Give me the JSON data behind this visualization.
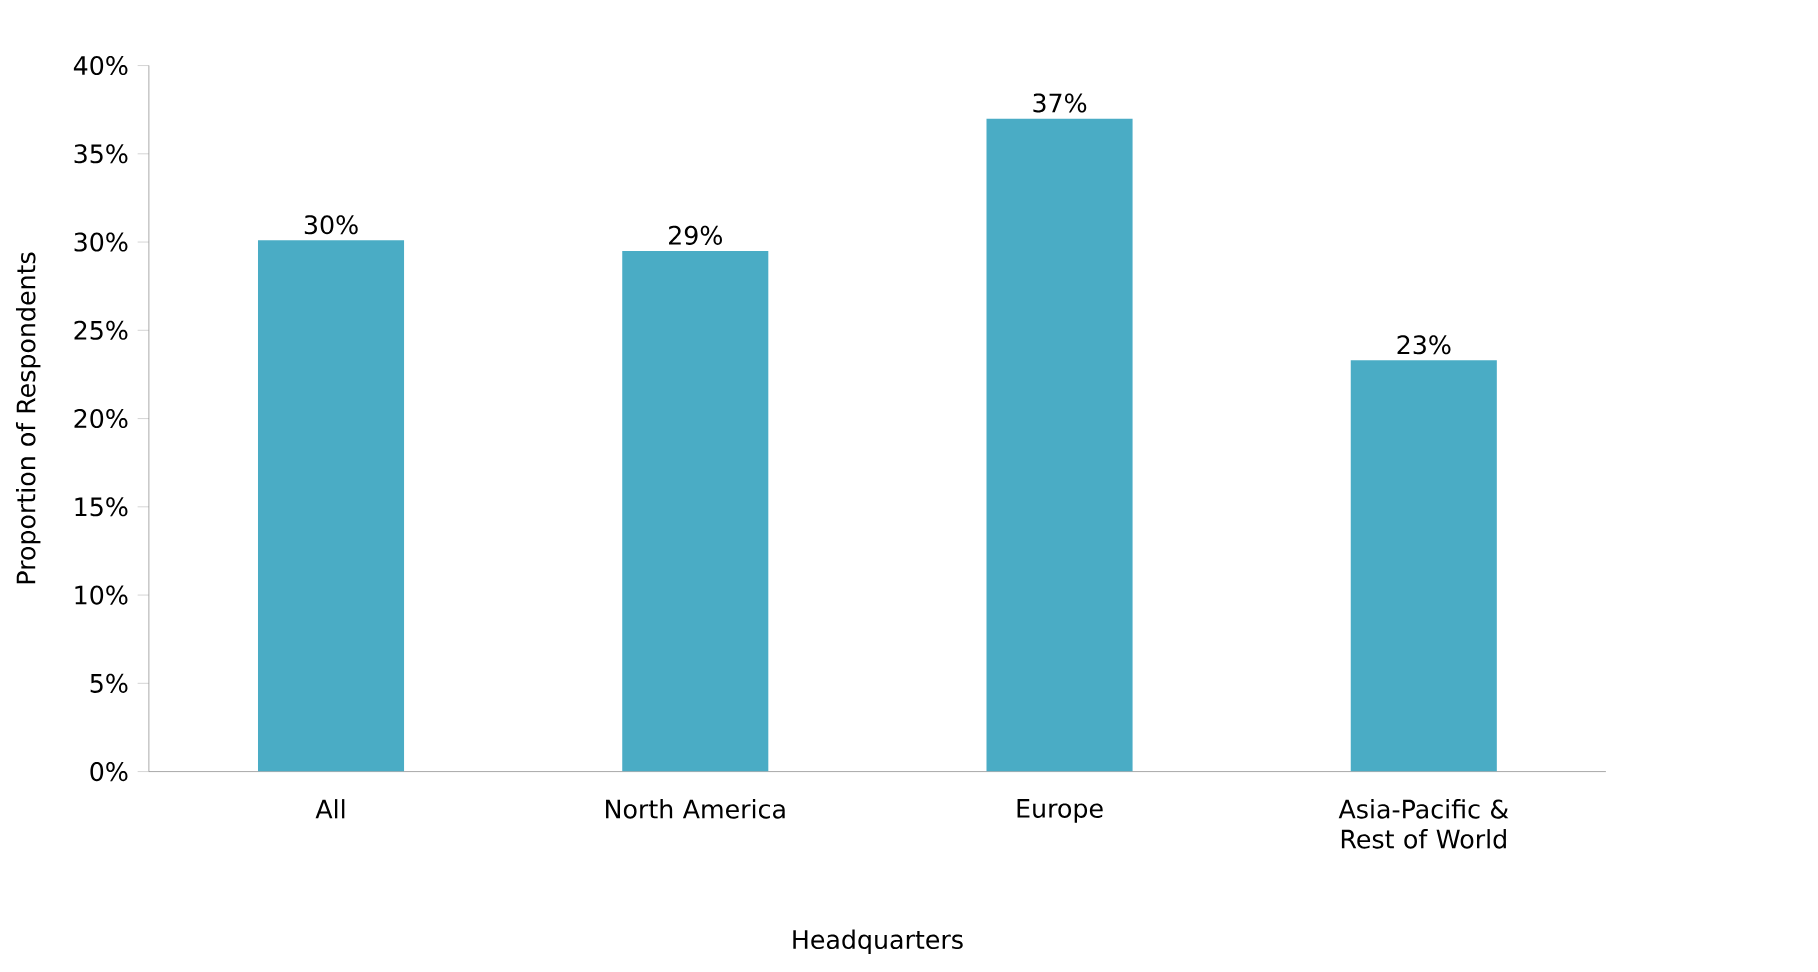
{
  "chart_data": {
    "type": "bar",
    "xlabel": "Headquarters",
    "ylabel": "Proportion of Respondents",
    "categories": [
      "All",
      "North America",
      "Europe",
      "Asia-Pacific & Rest of World"
    ],
    "values": [
      30.1,
      29.5,
      37.0,
      23.3
    ],
    "value_labels": [
      "30%",
      "29%",
      "37%",
      "23%"
    ],
    "color": "#4aacc5",
    "ylim": [
      0,
      40
    ],
    "yticks": [
      {
        "value": 0,
        "label": "0%"
      },
      {
        "value": 5,
        "label": "5%"
      },
      {
        "value": 10,
        "label": "10%"
      },
      {
        "value": 15,
        "label": "15%"
      },
      {
        "value": 20,
        "label": "20%"
      },
      {
        "value": 25,
        "label": "25%"
      },
      {
        "value": 30,
        "label": "30%"
      },
      {
        "value": 35,
        "label": "35%"
      },
      {
        "value": 40,
        "label": "40%"
      }
    ],
    "grid": false
  }
}
